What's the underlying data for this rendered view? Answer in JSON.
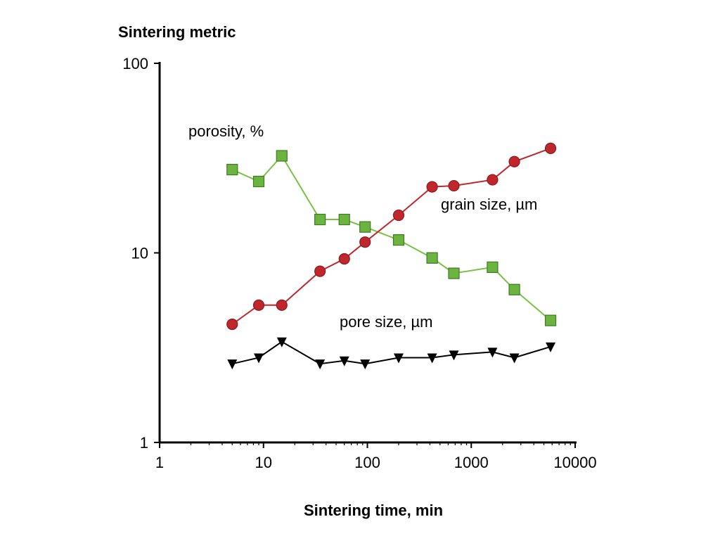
{
  "chart_data": {
    "type": "line",
    "ylabel": "Sintering metric",
    "xlabel": "Sintering time, min",
    "xscale": "log",
    "yscale": "log",
    "xlim": [
      1,
      10000
    ],
    "ylim": [
      1,
      100
    ],
    "x_ticks": [
      "1",
      "10",
      "100",
      "1000",
      "10000"
    ],
    "y_ticks": [
      "1",
      "10",
      "100"
    ],
    "grid": false,
    "series": [
      {
        "name": "porosity, %",
        "color": "#6db33f",
        "line_color": "#7ac143",
        "marker": "square",
        "x": [
          5,
          9,
          15,
          35,
          60,
          95,
          200,
          420,
          680,
          1600,
          2600,
          5800
        ],
        "y": [
          27.5,
          23.8,
          32.5,
          15.0,
          15.0,
          13.7,
          11.7,
          9.4,
          7.8,
          8.4,
          6.4,
          4.4
        ]
      },
      {
        "name": "grain size, µm",
        "color": "#c0272d",
        "line_color": "#c0272d",
        "marker": "circle",
        "x": [
          5,
          9,
          15,
          35,
          60,
          95,
          200,
          420,
          680,
          1600,
          2600,
          5800
        ],
        "y": [
          4.2,
          5.3,
          5.3,
          8.0,
          9.3,
          11.4,
          15.8,
          22.3,
          22.6,
          24.3,
          30.3,
          35.6
        ]
      },
      {
        "name": "pore size, µm",
        "color": "#000000",
        "line_color": "#000000",
        "marker": "triangle-down",
        "x": [
          5,
          9,
          15,
          35,
          60,
          95,
          200,
          420,
          680,
          1600,
          2600,
          5800
        ],
        "y": [
          2.6,
          2.8,
          3.4,
          2.6,
          2.7,
          2.6,
          2.8,
          2.8,
          2.9,
          3.0,
          2.8,
          3.2
        ]
      }
    ]
  }
}
